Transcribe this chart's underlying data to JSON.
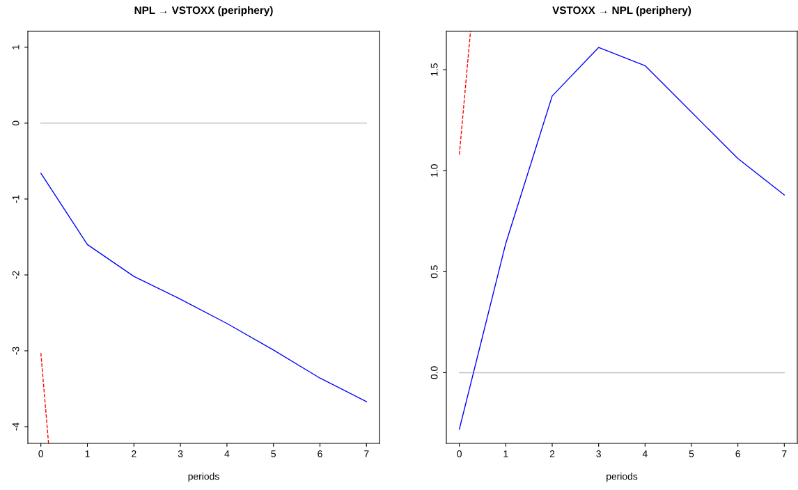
{
  "chart_data": [
    {
      "type": "line",
      "title": "NPL → VSTOXX (periphery)",
      "xlabel": "periods",
      "xlim": [
        -0.28,
        7.28
      ],
      "xticks": [
        0,
        1,
        2,
        3,
        4,
        5,
        6,
        7
      ],
      "ylim": [
        -4.22,
        1.21
      ],
      "yticks": [
        {
          "value": -4,
          "label": "-4"
        },
        {
          "value": -3,
          "label": "-3"
        },
        {
          "value": -2,
          "label": "-2"
        },
        {
          "value": -1,
          "label": "-1"
        },
        0,
        1
      ],
      "grid": false,
      "ref_lines": [
        {
          "axis": "y",
          "value": 0,
          "color": "#bebebe"
        }
      ],
      "series": [
        {
          "color": "#0000ff",
          "x": [
            0,
            1,
            2,
            3,
            4,
            5,
            6,
            7
          ],
          "values": [
            -0.66,
            -1.6,
            -2.02,
            -2.32,
            -2.64,
            -2.99,
            -3.36,
            -3.67
          ],
          "line_style": "solid"
        },
        {
          "color": "#ff0000",
          "x": [
            0,
            0.165
          ],
          "values": [
            -3.03,
            -4.22
          ],
          "line_style": "dashed"
        }
      ]
    },
    {
      "type": "line",
      "title": "VSTOXX → NPL (periphery)",
      "xlabel": "periods",
      "xlim": [
        -0.28,
        7.28
      ],
      "xticks": [
        0,
        1,
        2,
        3,
        4,
        5,
        6,
        7
      ],
      "ylim": [
        -0.35,
        1.69
      ],
      "yticks": [
        {
          "value": 0,
          "label": "0.0"
        },
        {
          "value": 0.5,
          "label": "0.5"
        },
        {
          "value": 1,
          "label": "1.0"
        },
        {
          "value": 1.5,
          "label": "1.5"
        }
      ],
      "grid": false,
      "ref_lines": [
        {
          "axis": "y",
          "value": 0,
          "color": "#bebebe"
        }
      ],
      "series": [
        {
          "color": "#0000ff",
          "x": [
            0,
            1,
            2,
            3,
            4,
            5,
            6,
            7
          ],
          "values": [
            -0.28,
            0.64,
            1.37,
            1.61,
            1.52,
            1.29,
            1.06,
            0.88
          ],
          "line_style": "solid"
        },
        {
          "color": "#ff0000",
          "x": [
            0,
            0.24
          ],
          "values": [
            1.08,
            1.69
          ],
          "line_style": "dashed"
        }
      ]
    }
  ]
}
